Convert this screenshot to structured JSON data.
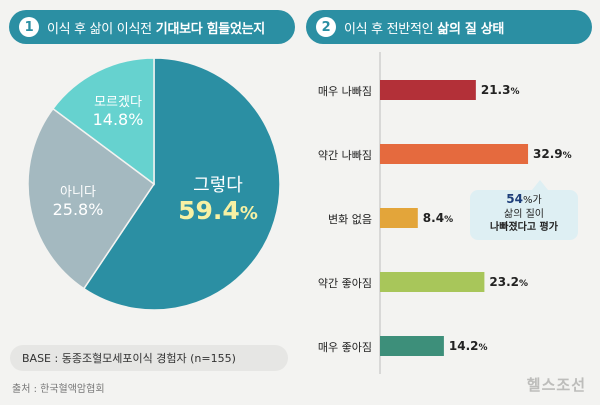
{
  "headers": {
    "left": {
      "num": "1",
      "text": "이식 후 삶이 이식전",
      "bold": "기대보다 힘들었는지"
    },
    "right": {
      "num": "2",
      "text": "이식 후 전반적인",
      "bold": "삶의 질 상태"
    }
  },
  "pie_labels": {
    "yes": {
      "name": "그렇다",
      "value": "59.4",
      "pct": "%"
    },
    "no": {
      "name": "아니다",
      "value": "25.8%"
    },
    "unknown": {
      "name": "모르겠다",
      "value": "14.8%"
    }
  },
  "base_note": "BASE : 동종조혈모세포이식 경험자 (n=155)",
  "source": "출처 : 한국혈액암협회",
  "brand": "헬스조선",
  "callout": {
    "line1_num": "54",
    "line1_pct": "%가",
    "line2": "삶의 질이",
    "line3": "나빠졌다고 평가"
  },
  "colors": {
    "header": "#2b8fa3",
    "pie_yes": "#2b8fa3",
    "pie_no": "#a4b9c0",
    "pie_unknown": "#66d2cf",
    "bar_very_bad": "#b33038",
    "bar_bad": "#e56a3e",
    "bar_neutral": "#e3a53a",
    "bar_good": "#a8c65a",
    "bar_very_good": "#3d8f7a"
  },
  "chart_data": [
    {
      "type": "pie",
      "title": "이식 후 삶이 이식전 기대보다 힘들었는지",
      "categories": [
        "그렇다",
        "아니다",
        "모르겠다"
      ],
      "values": [
        59.4,
        25.8,
        14.8
      ]
    },
    {
      "type": "bar",
      "title": "이식 후 전반적인 삶의 질 상태",
      "categories": [
        "매우 나빠짐",
        "약간 나빠짐",
        "변화 없음",
        "약간 좋아짐",
        "매우 좋아짐"
      ],
      "values": [
        21.3,
        32.9,
        8.4,
        23.2,
        14.2
      ],
      "value_labels": [
        "21.3",
        "32.9",
        "8.4",
        "23.2",
        "14.2"
      ],
      "unit": "%"
    }
  ]
}
